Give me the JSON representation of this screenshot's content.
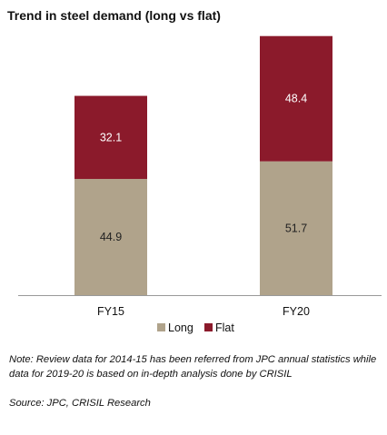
{
  "header": {
    "title": "Trend in steel demand (long vs flat)"
  },
  "chart_data": {
    "type": "bar",
    "stacked": true,
    "title": "Trend in steel demand (long vs flat)",
    "categories": [
      "FY15",
      "FY20"
    ],
    "series": [
      {
        "name": "Long",
        "values": [
          44.9,
          51.7
        ],
        "color": "#b0a38b",
        "label_color": "#222222"
      },
      {
        "name": "Flat",
        "values": [
          32.1,
          48.4
        ],
        "color": "#8b1a2b",
        "label_color": "#ffffff"
      }
    ],
    "data_labels": [
      [
        "44.9",
        "51.7"
      ],
      [
        "32.1",
        "48.4"
      ]
    ],
    "ylim": [
      0,
      100
    ],
    "grid": false,
    "legend": "bottom"
  },
  "footnotes": {
    "note": "Note: Review data for 2014-15 has been referred from JPC annual statistics while data for 2019-20 is based on in-depth analysis done by CRISIL",
    "source": "Source:  JPC, CRISIL Research"
  }
}
